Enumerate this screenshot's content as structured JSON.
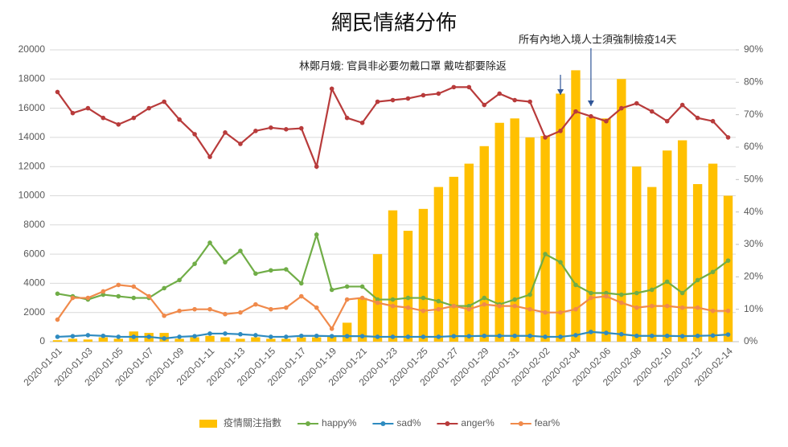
{
  "chart_data": {
    "type": "bar_line",
    "title": "網民情緒分佈",
    "annotations": [
      "林鄭月娥: 官員非必要勿戴口罩  戴咗都要除返",
      "所有內地入境人士須強制檢疫14天"
    ],
    "categories": [
      "2020-01-01",
      null,
      "2020-01-03",
      null,
      "2020-01-05",
      null,
      "2020-01-07",
      null,
      "2020-01-09",
      null,
      "2020-01-11",
      null,
      "2020-01-13",
      null,
      "2020-01-15",
      null,
      "2020-01-17",
      null,
      "2020-01-19",
      null,
      "2020-01-21",
      null,
      "2020-01-23",
      null,
      "2020-01-25",
      null,
      "2020-01-27",
      null,
      "2020-01-29",
      null,
      "2020-01-31",
      null,
      "2020-02-02",
      null,
      "2020-02-04",
      null,
      "2020-02-06",
      null,
      "2020-02-08",
      null,
      "2020-02-10",
      null,
      "2020-02-12",
      null,
      "2020-02-14"
    ],
    "series": [
      {
        "name": "疫情關注指數",
        "kind": "bar",
        "color": "#ffc000",
        "values": [
          100,
          200,
          150,
          300,
          200,
          700,
          600,
          600,
          200,
          300,
          400,
          300,
          200,
          300,
          200,
          200,
          300,
          300,
          400,
          1300,
          3000,
          6000,
          9000,
          7600,
          9100,
          10600,
          11300,
          12200,
          13400,
          15000,
          15300,
          14000,
          14100,
          17000,
          18600,
          15400,
          15300,
          18000,
          12000,
          10600,
          13100,
          13800,
          10800,
          12200,
          10000
        ]
      },
      {
        "name": "happy%",
        "kind": "line",
        "axis": "y2",
        "color": "#70ad47",
        "values": [
          14.8,
          14,
          13,
          14.5,
          14,
          13.5,
          13.5,
          16.5,
          19,
          24,
          30.5,
          24.5,
          28,
          21,
          22,
          22.3,
          18,
          33,
          16,
          17,
          17,
          13,
          13,
          13.5,
          13.5,
          12.5,
          11,
          11,
          13.5,
          11.5,
          13,
          14.5,
          27,
          24.5,
          17.5,
          15,
          15,
          14.5,
          15,
          16,
          18.5,
          15,
          19,
          21.5,
          25
        ]
      },
      {
        "name": "sad%",
        "kind": "line",
        "axis": "y2",
        "color": "#2e8bc0",
        "values": [
          1.5,
          1.7,
          2,
          1.8,
          1.5,
          1.5,
          1.5,
          1,
          1.5,
          1.7,
          2.5,
          2.5,
          2.3,
          2,
          1.5,
          1.5,
          1.8,
          1.8,
          1.7,
          1.7,
          1.7,
          1.5,
          1.5,
          1.5,
          1.5,
          1.5,
          1.7,
          1.7,
          1.8,
          1.8,
          1.8,
          1.8,
          1.5,
          1.5,
          2,
          3,
          2.7,
          2.3,
          1.8,
          1.8,
          1.8,
          1.7,
          1.8,
          1.9,
          2.2
        ]
      },
      {
        "name": "anger%",
        "kind": "line",
        "axis": "y2",
        "color": "#b83b3b",
        "values": [
          77,
          70.5,
          72,
          69,
          67,
          69,
          72,
          74,
          68.5,
          64,
          57,
          64.5,
          61,
          65,
          66,
          65.5,
          65.8,
          54,
          78,
          69,
          67.5,
          74,
          74.5,
          75,
          76,
          76.5,
          78.5,
          78.5,
          73,
          76.5,
          74.5,
          74,
          63,
          65,
          71,
          69.5,
          68,
          72,
          73.5,
          71,
          68,
          73,
          69,
          68,
          63
        ]
      },
      {
        "name": "fear%",
        "kind": "line",
        "axis": "y2",
        "color": "#f08a4b",
        "values": [
          6.8,
          13.5,
          13.5,
          15.5,
          17.5,
          17,
          14,
          8,
          9.5,
          10,
          10,
          8.5,
          9,
          11.5,
          10,
          10.5,
          14,
          10.5,
          4,
          13,
          13.5,
          12,
          11,
          10.5,
          9.5,
          10,
          11,
          10,
          11.5,
          11,
          11,
          10,
          9,
          9,
          10,
          13.5,
          14,
          12,
          10.5,
          11,
          11,
          10.5,
          10.5,
          9.5,
          9.5
        ]
      }
    ],
    "ylim": [
      0,
      20000
    ],
    "yticks": [
      0,
      2000,
      4000,
      6000,
      8000,
      10000,
      12000,
      14000,
      16000,
      18000,
      20000
    ],
    "y2lim": [
      0,
      90
    ],
    "y2ticks": [
      {
        "value": 0,
        "label": "0%"
      },
      {
        "value": 10,
        "label": "10%"
      },
      {
        "value": 20,
        "label": "20%"
      },
      {
        "value": 30,
        "label": "30%"
      },
      {
        "value": 40,
        "label": "40%"
      },
      {
        "value": 50,
        "label": "50%"
      },
      {
        "value": 60,
        "label": "60%"
      },
      {
        "value": 70,
        "label": "70%"
      },
      {
        "value": 80,
        "label": "80%"
      },
      {
        "value": 90,
        "label": "90%"
      }
    ],
    "legend": "bottom"
  }
}
